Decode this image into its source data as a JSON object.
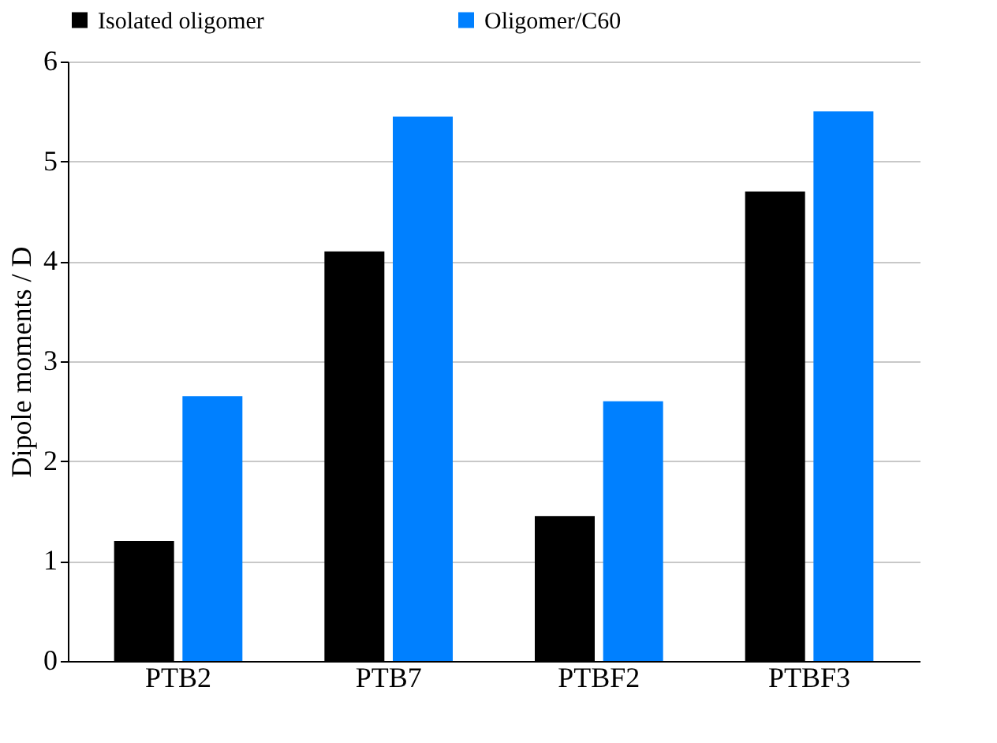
{
  "chart_data": {
    "type": "bar",
    "ylabel": "Dipole moments / D",
    "categories": [
      "PTB2",
      "PTB7",
      "PTBF2",
      "PTBF3"
    ],
    "series": [
      {
        "name": "Isolated oligomer",
        "color": "#000000",
        "values": [
          1.2,
          4.1,
          1.45,
          4.7
        ]
      },
      {
        "name": "Oligomer/C60",
        "color": "#0080ff",
        "values": [
          2.65,
          5.45,
          2.6,
          5.5
        ]
      }
    ],
    "ylim": [
      0,
      6
    ],
    "yticks": [
      0,
      1,
      2,
      3,
      4,
      5,
      6
    ],
    "grid": "y",
    "legend": "top"
  }
}
